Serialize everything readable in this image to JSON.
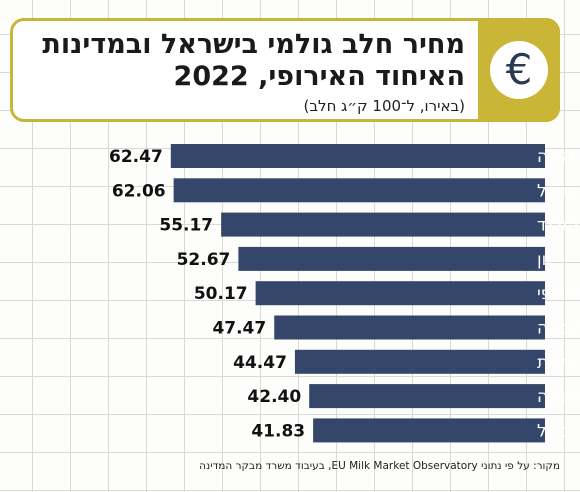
{
  "header": {
    "title": "מחיר חלב גולמי בישראל ובמדינות האיחוד האירופי, 2022",
    "subtitle": "(באירו, ל־100 ק״ג חלב)",
    "icon": "euro-icon",
    "icon_glyph": "€",
    "accent_color": "#c9b637"
  },
  "source": "מקור: על פי נתוני EU Milk Market Observatory, בעיבוד משרד מבקר המדינה",
  "chart_data": {
    "type": "bar",
    "orientation": "horizontal",
    "categories": [
      "מלטה",
      "ישראל",
      "הולנד",
      "יוון",
      "האיחוד האירופי",
      "רומניה",
      "צרפת",
      "שוודיה",
      "פורטוגל"
    ],
    "values": [
      62.47,
      62.06,
      55.17,
      52.67,
      50.17,
      47.47,
      44.47,
      42.4,
      41.83
    ],
    "value_labels": [
      "62.47",
      "62.06",
      "55.17",
      "52.67",
      "50.17",
      "47.47",
      "44.47",
      "42.40",
      "41.83"
    ],
    "bar_color": "#34476b",
    "grid": true
  }
}
